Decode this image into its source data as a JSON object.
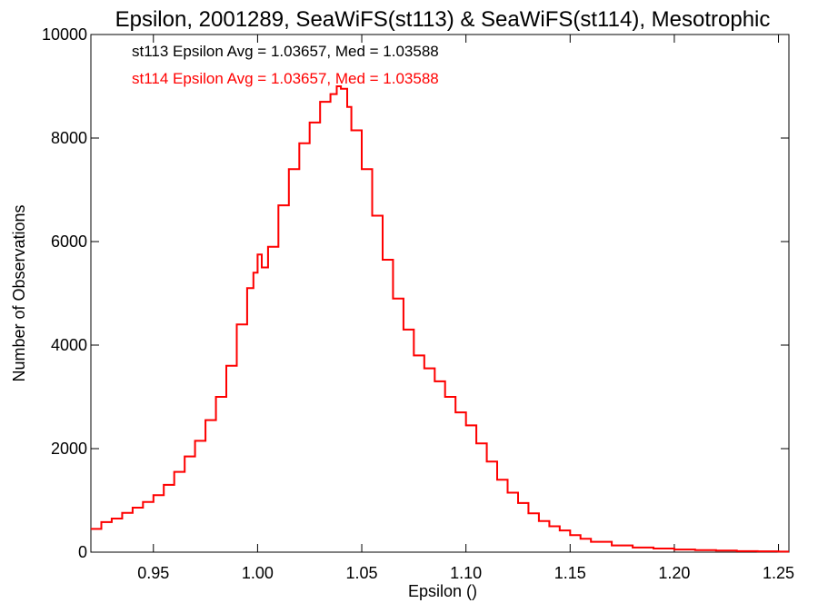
{
  "chart_data": {
    "type": "line",
    "title": "Epsilon, 2001289, SeaWiFS(st113) & SeaWiFS(st114), Mesotrophic",
    "xlabel": "Epsilon ()",
    "ylabel": "Number of Observations",
    "xlim": [
      0.92,
      1.255
    ],
    "ylim": [
      0,
      10000
    ],
    "xticks": [
      0.95,
      1.0,
      1.05,
      1.1,
      1.15,
      1.2,
      1.25
    ],
    "xtick_labels": [
      "0.95",
      "1.00",
      "1.05",
      "1.10",
      "1.15",
      "1.20",
      "1.25"
    ],
    "yticks": [
      0,
      2000,
      4000,
      6000,
      8000,
      10000
    ],
    "ytick_labels": [
      "0",
      "2000",
      "4000",
      "6000",
      "8000",
      "10000"
    ],
    "annotations": [
      {
        "text": "st113 Epsilon Avg = 1.03657, Med = 1.03588",
        "color": "#000000"
      },
      {
        "text": "st114 Epsilon Avg = 1.03657, Med = 1.03588",
        "color": "#ff0000"
      }
    ],
    "series": [
      {
        "color": "#000000",
        "x": [
          0.92,
          0.925,
          0.93,
          0.935,
          0.94,
          0.945,
          0.95,
          0.955,
          0.96,
          0.965,
          0.97,
          0.975,
          0.98,
          0.985,
          0.99,
          0.995,
          0.998,
          1.0,
          1.002,
          1.005,
          1.01,
          1.015,
          1.02,
          1.025,
          1.03,
          1.035,
          1.038,
          1.04,
          1.043,
          1.045,
          1.05,
          1.055,
          1.06,
          1.065,
          1.07,
          1.075,
          1.08,
          1.085,
          1.09,
          1.095,
          1.1,
          1.105,
          1.11,
          1.115,
          1.12,
          1.125,
          1.13,
          1.135,
          1.14,
          1.145,
          1.15,
          1.155,
          1.16,
          1.17,
          1.18,
          1.19,
          1.2,
          1.21,
          1.22,
          1.23,
          1.24,
          1.25,
          1.255
        ],
        "y": [
          450,
          580,
          650,
          760,
          860,
          970,
          1100,
          1300,
          1550,
          1850,
          2150,
          2550,
          3000,
          3600,
          4400,
          5100,
          5400,
          5750,
          5500,
          5900,
          6700,
          7400,
          7900,
          8300,
          8700,
          8850,
          9000,
          8950,
          8600,
          8150,
          7400,
          6500,
          5650,
          4900,
          4300,
          3800,
          3550,
          3300,
          3000,
          2700,
          2450,
          2100,
          1750,
          1400,
          1150,
          950,
          750,
          600,
          500,
          420,
          330,
          260,
          200,
          130,
          90,
          70,
          50,
          40,
          30,
          20,
          15,
          10,
          10
        ]
      },
      {
        "color": "#ff0000",
        "x": [
          0.92,
          0.925,
          0.93,
          0.935,
          0.94,
          0.945,
          0.95,
          0.955,
          0.96,
          0.965,
          0.97,
          0.975,
          0.98,
          0.985,
          0.99,
          0.995,
          0.998,
          1.0,
          1.002,
          1.005,
          1.01,
          1.015,
          1.02,
          1.025,
          1.03,
          1.035,
          1.038,
          1.04,
          1.043,
          1.045,
          1.05,
          1.055,
          1.06,
          1.065,
          1.07,
          1.075,
          1.08,
          1.085,
          1.09,
          1.095,
          1.1,
          1.105,
          1.11,
          1.115,
          1.12,
          1.125,
          1.13,
          1.135,
          1.14,
          1.145,
          1.15,
          1.155,
          1.16,
          1.17,
          1.18,
          1.19,
          1.2,
          1.21,
          1.22,
          1.23,
          1.24,
          1.25,
          1.255
        ],
        "y": [
          450,
          580,
          650,
          760,
          860,
          970,
          1100,
          1300,
          1550,
          1850,
          2150,
          2550,
          3000,
          3600,
          4400,
          5100,
          5400,
          5750,
          5500,
          5900,
          6700,
          7400,
          7900,
          8300,
          8700,
          8850,
          9000,
          8950,
          8600,
          8150,
          7400,
          6500,
          5650,
          4900,
          4300,
          3800,
          3550,
          3300,
          3000,
          2700,
          2450,
          2100,
          1750,
          1400,
          1150,
          950,
          750,
          600,
          500,
          420,
          330,
          260,
          200,
          130,
          90,
          70,
          50,
          40,
          30,
          20,
          15,
          10,
          10
        ]
      }
    ]
  }
}
